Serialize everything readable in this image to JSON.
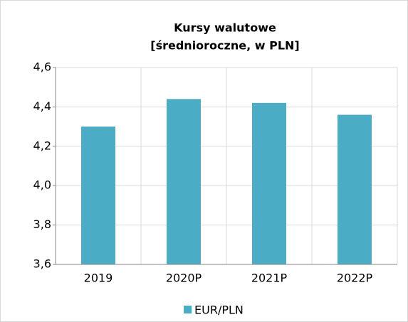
{
  "chart_data": {
    "type": "bar",
    "title": "Kursy walutowe",
    "subtitle": "[średnioroczne, w PLN]",
    "categories": [
      "2019",
      "2020P",
      "2021P",
      "2022P"
    ],
    "series": [
      {
        "name": "EUR/PLN",
        "color": "#4bacc6",
        "values": [
          4.3,
          4.44,
          4.42,
          4.36
        ]
      }
    ],
    "ylim": [
      3.6,
      4.6
    ],
    "yticks": [
      {
        "value": 3.6,
        "label": "3,6"
      },
      {
        "value": 3.8,
        "label": "3,8"
      },
      {
        "value": 4.0,
        "label": "4,0"
      },
      {
        "value": 4.2,
        "label": "4,2"
      },
      {
        "value": 4.4,
        "label": "4,4"
      },
      {
        "value": 4.6,
        "label": "4,6"
      }
    ],
    "grid": true,
    "legend": "bottom"
  }
}
